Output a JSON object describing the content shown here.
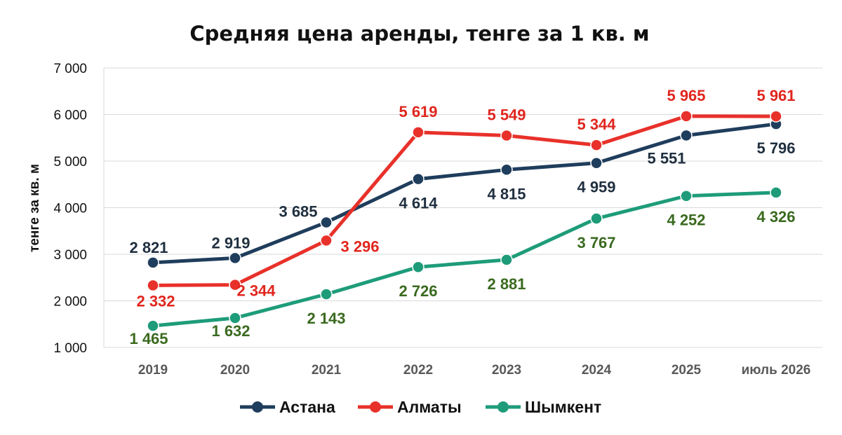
{
  "chart_data": {
    "type": "line",
    "title": "Средняя цена аренды, тенге за 1 кв. м",
    "ylabel": "тенге за кв. м",
    "xlabel": "",
    "ylim": [
      1000,
      7000
    ],
    "yticks": [
      1000,
      2000,
      3000,
      4000,
      5000,
      6000,
      7000
    ],
    "ytick_labels": [
      "1 000",
      "2 000",
      "3 000",
      "4 000",
      "5 000",
      "6 000",
      "7 000"
    ],
    "grid": true,
    "legend_position": "bottom",
    "categories": [
      "2019",
      "2020",
      "2021",
      "2022",
      "2023",
      "2024",
      "2025",
      "июль 2026"
    ],
    "series": [
      {
        "name": "Астана",
        "color": "#1f3d5c",
        "values": [
          2821,
          2919,
          3685,
          4614,
          4815,
          4959,
          5551,
          5796
        ],
        "labels": [
          "2 821",
          "2 919",
          "3 685",
          "4 614",
          "4 815",
          "4 959",
          "5 551",
          "5 796"
        ],
        "label_color": "#1f2f3f"
      },
      {
        "name": "Алматы",
        "color": "#e8312a",
        "values": [
          2332,
          2344,
          3296,
          5619,
          5549,
          5344,
          5965,
          5961
        ],
        "labels": [
          "2 332",
          "2 344",
          "3 296",
          "5 619",
          "5 549",
          "5 344",
          "5 965",
          "5 961"
        ],
        "label_color": "#e0261e"
      },
      {
        "name": "Шымкент",
        "color": "#1e9c7a",
        "values": [
          1465,
          1632,
          2143,
          2726,
          2881,
          3767,
          4252,
          4326
        ],
        "labels": [
          "1 465",
          "1 632",
          "2 143",
          "2 726",
          "2 881",
          "3 767",
          "4 252",
          "4 326"
        ],
        "label_color": "#3a6a1f"
      }
    ]
  }
}
